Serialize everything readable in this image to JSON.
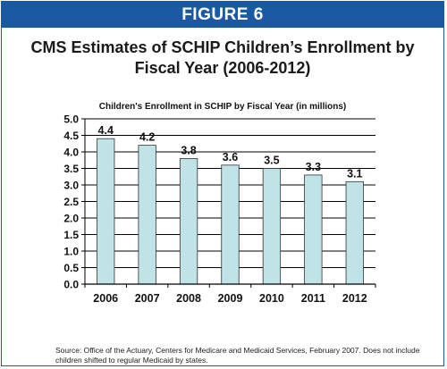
{
  "banner": {
    "label": "FIGURE 6"
  },
  "figure_title": "CMS Estimates of SCHIP Children’s Enrollment by Fiscal Year (2006-2012)",
  "source_note": "Source: Office of the Actuary, Centers for Medicare and Medicaid Services, February 2007.  Does not include children shifted to regular Medicaid by states.",
  "chart_data": {
    "type": "bar",
    "title": "Children's Enrollment in SCHIP by Fiscal Year (in millions)",
    "xlabel": "",
    "ylabel": "",
    "categories": [
      "2006",
      "2007",
      "2008",
      "2009",
      "2010",
      "2011",
      "2012"
    ],
    "values": [
      4.4,
      4.2,
      3.8,
      3.6,
      3.5,
      3.3,
      3.1
    ],
    "data_labels": [
      "4.4",
      "4.2",
      "3.8",
      "3.6",
      "3.5",
      "3.3",
      "3.1"
    ],
    "ylim": [
      0,
      5
    ],
    "yticks": [
      "0.0",
      "0.5",
      "1.0",
      "1.5",
      "2.0",
      "2.5",
      "3.0",
      "3.5",
      "4.0",
      "4.5",
      "5.0"
    ],
    "grid": true,
    "colors": {
      "bar": "#bfe3e6",
      "bar_border": "#333333",
      "grid": "#000000",
      "banner": "#1b5aa2"
    }
  }
}
